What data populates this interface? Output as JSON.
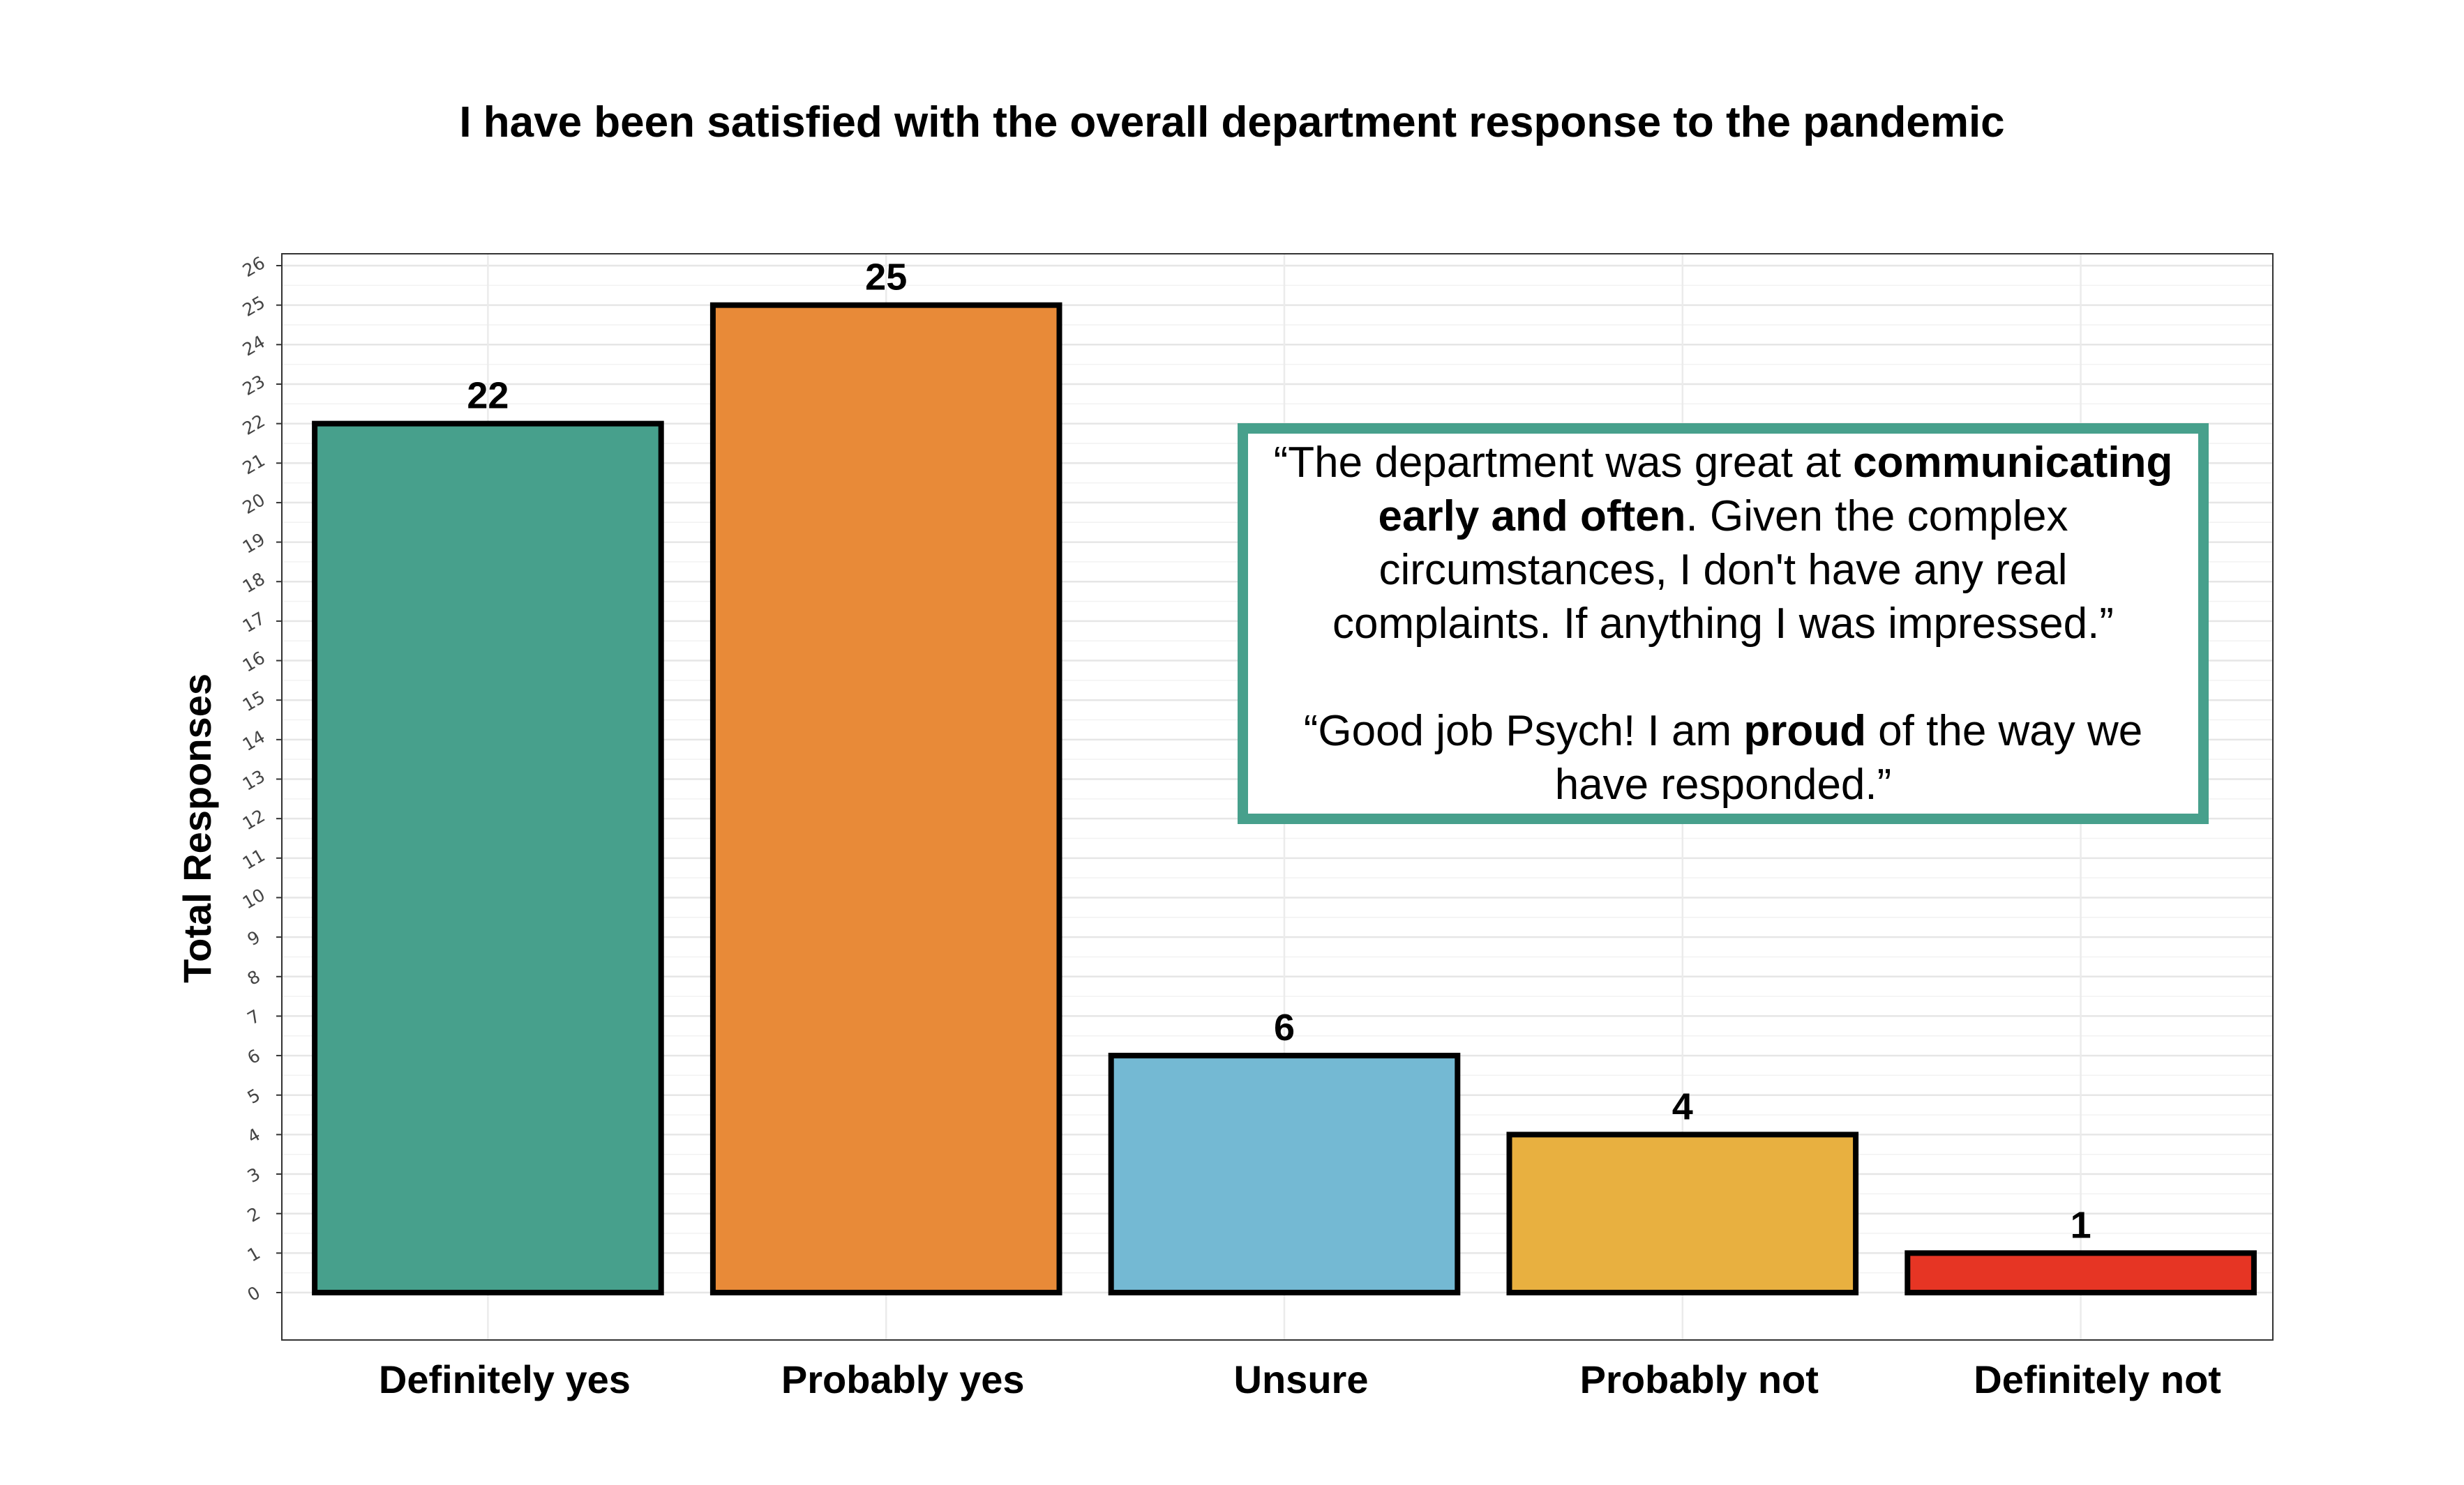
{
  "chart_data": {
    "type": "bar",
    "title": "I have been satisfied with the overall department response to the pandemic",
    "ylabel": "Total Responses",
    "xlabel": "",
    "categories": [
      "Definitely yes",
      "Probably yes",
      "Unsure",
      "Probably not",
      "Definitely not"
    ],
    "values": [
      22,
      25,
      6,
      4,
      1
    ],
    "colors": [
      "#47A08C",
      "#E88A38",
      "#74B9D3",
      "#E8B040",
      "#E63524"
    ],
    "ylim": [
      -1.2,
      26.3
    ],
    "yticks": [
      0,
      1,
      2,
      3,
      4,
      5,
      6,
      7,
      8,
      9,
      10,
      11,
      12,
      13,
      14,
      15,
      16,
      17,
      18,
      19,
      20,
      21,
      22,
      23,
      24,
      25,
      26
    ],
    "grid": true,
    "data_labels": true
  },
  "annotation": {
    "quote1": {
      "part1": "“The department was great at ",
      "bold": "communicating early and often",
      "part2": ". Given the complex circumstances, I don't have any real complaints. If anything I was impressed.”"
    },
    "quote2": {
      "part1": "“Good job Psych! I am ",
      "bold": "proud",
      "part2": " of the way we have responded.”"
    },
    "border_color": "#47A08C"
  }
}
